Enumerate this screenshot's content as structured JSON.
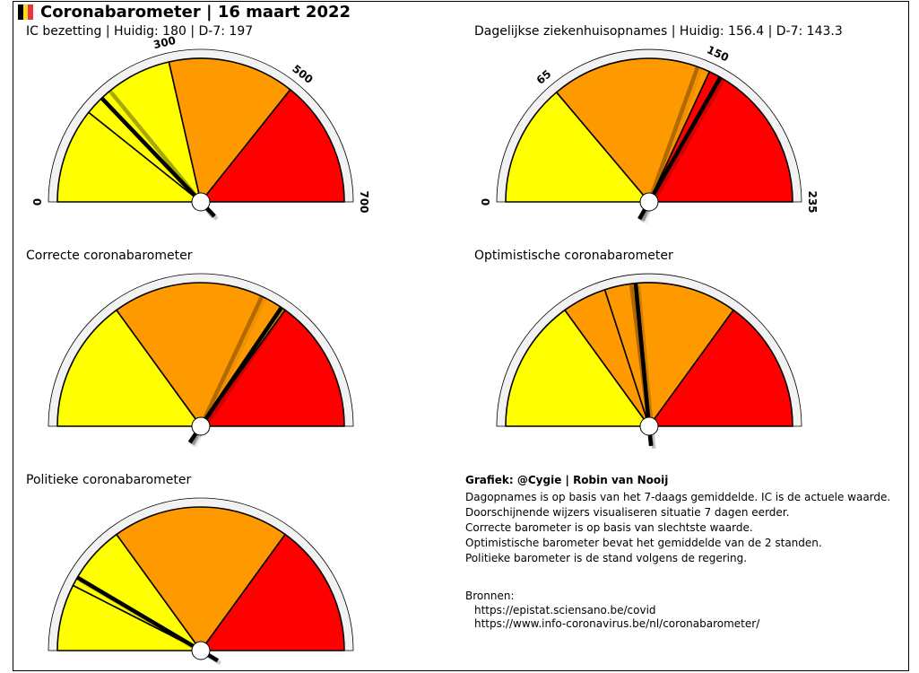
{
  "header": {
    "title": "Coronabarometer | 16 maart 2022",
    "flag_colors": [
      "#000000",
      "#fdda24",
      "#ef3340"
    ]
  },
  "colors": {
    "yellow": "#ffff00",
    "orange": "#ff9900",
    "red": "#ff0000",
    "rim": "#f2f2f2",
    "needle": "#000000",
    "needle_shadow": "#000000"
  },
  "chart_data": [
    {
      "type": "gauge",
      "title": "IC bezetting | Huidig: 180 | D-7: 197",
      "range": [
        0,
        700
      ],
      "zones": [
        {
          "from": 0,
          "to": 150,
          "color": "yellow"
        },
        {
          "from": 150,
          "to": 300,
          "color": "yellow"
        },
        {
          "from": 300,
          "to": 500,
          "color": "orange"
        },
        {
          "from": 500,
          "to": 700,
          "color": "red"
        }
      ],
      "ticks": [
        {
          "value": 0,
          "label": "0"
        },
        {
          "value": 300,
          "label": "300"
        },
        {
          "value": 500,
          "label": "500"
        },
        {
          "value": 700,
          "label": "700"
        }
      ],
      "current": 180,
      "previous": 197
    },
    {
      "type": "gauge",
      "title": "Dagelijkse ziekenhuisopnames | Huidig: 156.4 | D-7: 143.3",
      "range": [
        0,
        235
      ],
      "zones": [
        {
          "from": 0,
          "to": 65,
          "color": "yellow"
        },
        {
          "from": 65,
          "to": 150,
          "color": "orange"
        },
        {
          "from": 150,
          "to": 235,
          "color": "red"
        }
      ],
      "ticks": [
        {
          "value": 0,
          "label": "0"
        },
        {
          "value": 65,
          "label": "65"
        },
        {
          "value": 150,
          "label": "150"
        },
        {
          "value": 235,
          "label": "235"
        }
      ],
      "current": 156.4,
      "previous": 143.3
    },
    {
      "type": "gauge",
      "title": "Correcte coronabarometer",
      "range": [
        0,
        1
      ],
      "zones": [
        {
          "from": 0,
          "to": 0.3,
          "color": "yellow"
        },
        {
          "from": 0.3,
          "to": 0.7,
          "color": "orange"
        },
        {
          "from": 0.7,
          "to": 1,
          "color": "red"
        }
      ],
      "ticks": [],
      "current": 0.69,
      "previous": 0.64
    },
    {
      "type": "gauge",
      "title": "Optimistische coronabarometer",
      "range": [
        0,
        1
      ],
      "zones": [
        {
          "from": 0,
          "to": 0.3,
          "color": "yellow"
        },
        {
          "from": 0.3,
          "to": 0.4,
          "color": "orange"
        },
        {
          "from": 0.4,
          "to": 0.7,
          "color": "orange"
        },
        {
          "from": 0.7,
          "to": 1,
          "color": "red"
        }
      ],
      "ticks": [],
      "current": 0.47,
      "previous": 0.46
    },
    {
      "type": "gauge",
      "title": "Politieke coronabarometer",
      "range": [
        0,
        1
      ],
      "zones": [
        {
          "from": 0,
          "to": 0.15,
          "color": "yellow"
        },
        {
          "from": 0.15,
          "to": 0.3,
          "color": "yellow"
        },
        {
          "from": 0.3,
          "to": 0.7,
          "color": "orange"
        },
        {
          "from": 0.7,
          "to": 1,
          "color": "red"
        }
      ],
      "ticks": [],
      "current": 0.17,
      "previous": null
    }
  ],
  "notes": {
    "credit": "Grafiek: @Cygie | Robin van Nooij",
    "lines": [
      "Dagopnames is op basis van het 7-daags gemiddelde. IC is de actuele waarde.",
      "Doorschijnende wijzers visualiseren situatie 7 dagen eerder.",
      "Correcte barometer is op basis van slechtste waarde.",
      "Optimistische barometer bevat het gemiddelde van de 2 standen.",
      "Politieke barometer is de stand volgens de regering."
    ],
    "sources_label": "Bronnen:",
    "sources": [
      "https://epistat.sciensano.be/covid",
      "https://www.info-coronavirus.be/nl/coronabarometer/"
    ]
  }
}
